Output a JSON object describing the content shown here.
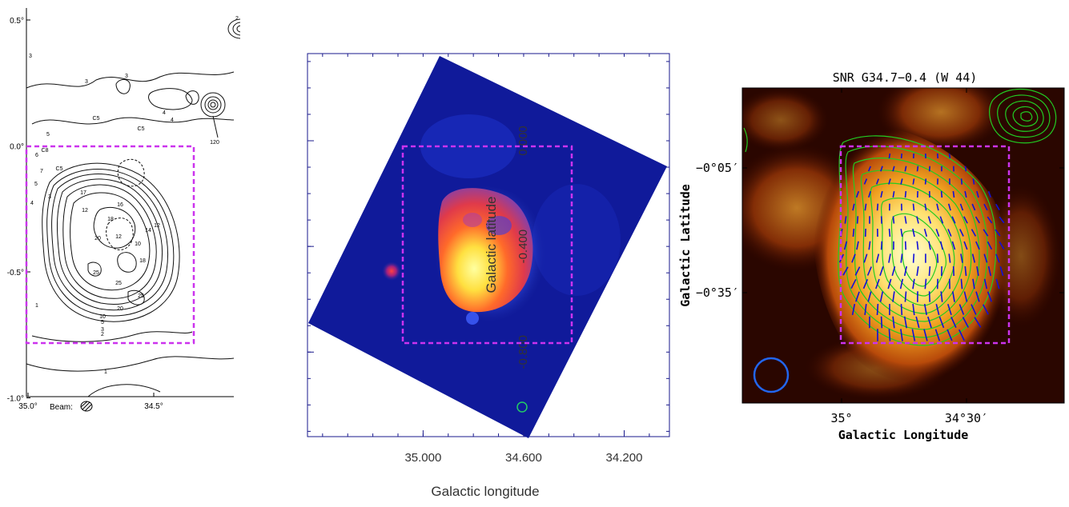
{
  "colors": {
    "selection_box": "#cc33ee",
    "frame_blue": "#1a1a8c",
    "polarization_vectors": "#1010d8",
    "contours_green": "#22cc22",
    "beam_circle": "#2266ee"
  },
  "chart_data": [
    {
      "type": "contour",
      "panel": "left",
      "y_ticks": [
        "0.5°",
        "0.0°",
        "-0.5°",
        "-1.0°"
      ],
      "y_tick_values": [
        0.5,
        0.0,
        -0.5,
        -1.0
      ],
      "x_ticks": [
        "35.0°",
        "34.5°"
      ],
      "x_tick_values": [
        35.0,
        34.5
      ],
      "beam_label": "Beam:",
      "contour_labels": [
        "2",
        "C5",
        "3",
        "3",
        "3",
        "4",
        "C5",
        "4",
        "C5",
        "5",
        "6",
        "C8",
        "C5",
        "7",
        "5",
        "4",
        "3",
        "17",
        "12",
        "16",
        "18",
        "12",
        "20",
        "14",
        "12",
        "10",
        "18",
        "25",
        "25",
        "25",
        "20",
        "10",
        "5",
        "3",
        "2",
        "1",
        "1",
        "120"
      ],
      "selection_box_extent": {
        "lon": [
          34.93,
          34.43
        ],
        "lat": [
          0.0,
          -0.78
        ]
      }
    },
    {
      "type": "image",
      "panel": "middle",
      "xlabel": "Galactic longitude",
      "ylabel": "Galactic latitude",
      "x_ticks": [
        "35.000",
        "34.600",
        "34.200"
      ],
      "x_tick_values": [
        35.0,
        34.6,
        34.2
      ],
      "y_ticks": [
        "0.000",
        "-0.400",
        "-0.800"
      ],
      "y_tick_values": [
        0.0,
        -0.4,
        -0.8
      ],
      "xlim": [
        35.46,
        34.02
      ],
      "ylim": [
        -1.12,
        0.33
      ],
      "selection_box_extent": {
        "lon": [
          35.0,
          34.29
        ],
        "lat": [
          -0.004,
          -0.78
        ]
      }
    },
    {
      "type": "image",
      "panel": "right",
      "title": "SNR G34.7−0.4 (W 44)",
      "xlabel": "Galactic Longitude",
      "ylabel": "Galactic Latitude",
      "x_ticks": [
        "35°",
        "34°30′"
      ],
      "y_ticks": [
        "−0°05′",
        "−0°35′"
      ],
      "selection_box_extent": {
        "lon": [
          35.0,
          34.43
        ],
        "lat": [
          -0.02,
          -0.82
        ]
      }
    }
  ]
}
